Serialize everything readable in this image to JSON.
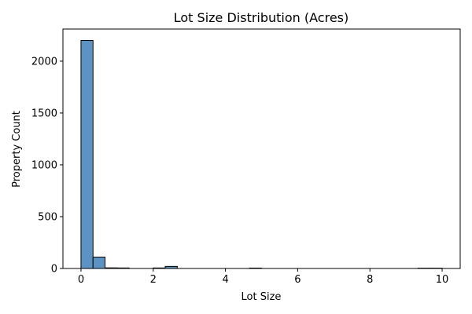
{
  "chart_data": {
    "type": "bar",
    "title": "Lot Size Distribution (Acres)",
    "xlabel": "Lot Size",
    "ylabel": "Property Count",
    "xlim": [
      -0.5,
      10.5
    ],
    "ylim": [
      0,
      2310
    ],
    "xticks": [
      0,
      2,
      4,
      6,
      8,
      10
    ],
    "yticks": [
      0,
      500,
      1000,
      1500,
      2000
    ],
    "bin_width": 0.333,
    "bins": [
      {
        "start": 0.0,
        "count": 2200
      },
      {
        "start": 0.333,
        "count": 110
      },
      {
        "start": 0.667,
        "count": 6
      },
      {
        "start": 1.0,
        "count": 5
      },
      {
        "start": 2.0,
        "count": 5
      },
      {
        "start": 2.333,
        "count": 20
      },
      {
        "start": 4.667,
        "count": 4
      },
      {
        "start": 9.333,
        "count": 3
      },
      {
        "start": 9.667,
        "count": 3
      }
    ],
    "bar_color": "#5b94c2",
    "grid": false,
    "legend": "none"
  }
}
